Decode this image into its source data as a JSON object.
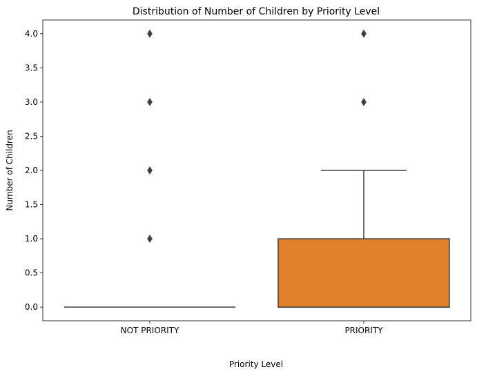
{
  "chart_data": {
    "type": "box",
    "title": "Distribution of Number of Children by Priority Level",
    "xlabel": "Priority Level",
    "ylabel": "Number of Children",
    "categories": [
      "NOT PRIORITY",
      "PRIORITY"
    ],
    "ylim": [
      -0.2,
      4.2
    ],
    "yticks": [
      0.0,
      0.5,
      1.0,
      1.5,
      2.0,
      2.5,
      3.0,
      3.5,
      4.0
    ],
    "ytick_labels": [
      "0.0",
      "0.5",
      "1.0",
      "1.5",
      "2.0",
      "2.5",
      "3.0",
      "3.5",
      "4.0"
    ],
    "boxes": [
      {
        "category": "NOT PRIORITY",
        "color": "#3274a1",
        "q1": 0,
        "median": 0,
        "q3": 0,
        "whisker_low": 0,
        "whisker_high": 0,
        "outliers": [
          1,
          2,
          3,
          4
        ]
      },
      {
        "category": "PRIORITY",
        "color": "#e1812c",
        "q1": 0,
        "median": 0,
        "q3": 1,
        "whisker_low": 0,
        "whisker_high": 2,
        "outliers": [
          3,
          4
        ]
      }
    ],
    "line_color": "#3f3f3f",
    "grid": false
  }
}
